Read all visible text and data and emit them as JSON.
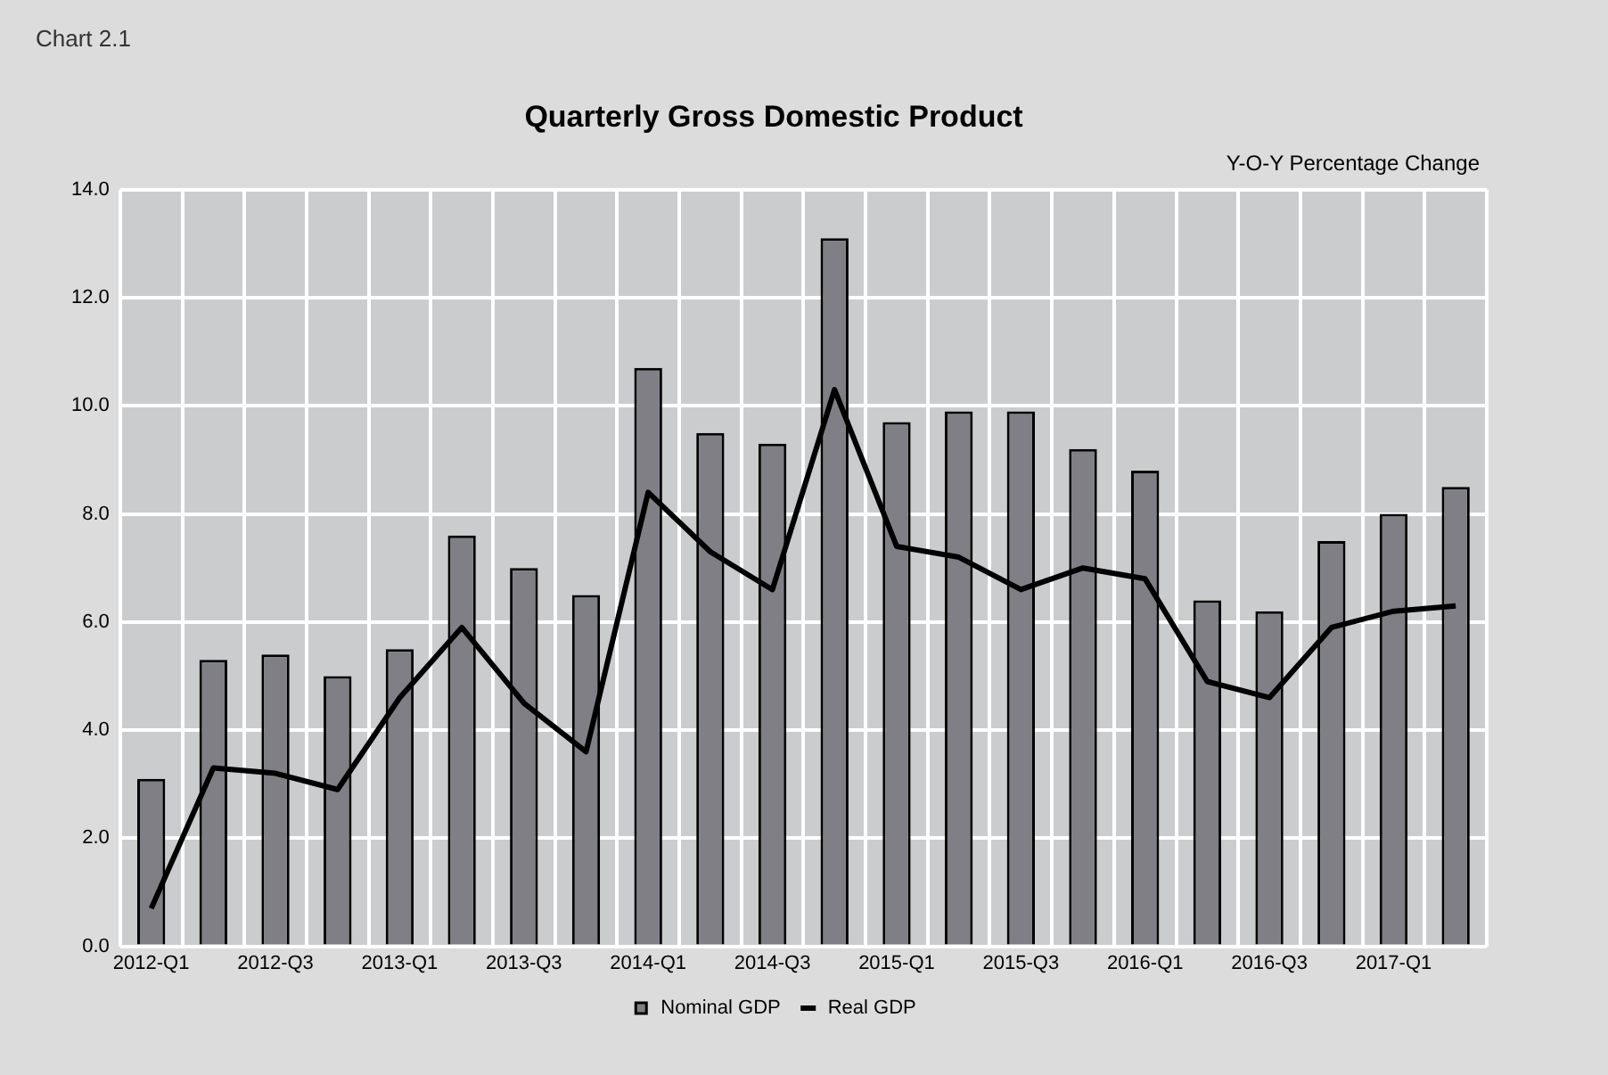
{
  "chart_data": {
    "type": "bar",
    "title": "Quarterly Gross Domestic Product",
    "ylabel": "Y-O-Y Percentage Change",
    "annotations": [
      "Chart 2.1"
    ],
    "categories": [
      "2012-Q1",
      null,
      "2012-Q3",
      null,
      "2013-Q1",
      null,
      "2013-Q3",
      null,
      "2014-Q1",
      null,
      "2014-Q3",
      null,
      "2015-Q1",
      null,
      "2015-Q3",
      null,
      "2016-Q1",
      null,
      "2016-Q3",
      null,
      "2017-Q1",
      null
    ],
    "series": [
      {
        "name": "Nominal GDP",
        "color": "#7f7f85",
        "values": [
          3.1,
          5.3,
          5.4,
          5.0,
          5.5,
          7.6,
          7.0,
          6.5,
          10.7,
          9.5,
          9.3,
          13.1,
          9.7,
          9.9,
          9.9,
          9.2,
          8.8,
          6.4,
          6.2,
          7.5,
          8.0,
          8.5
        ]
      },
      {
        "name": "Real GDP",
        "type": "line",
        "color": "#000000",
        "marker": "none",
        "line_style": "solid",
        "values": [
          0.7,
          3.3,
          3.2,
          2.9,
          4.6,
          5.9,
          4.5,
          3.6,
          8.4,
          7.3,
          6.6,
          10.3,
          7.4,
          7.2,
          6.6,
          7.0,
          6.8,
          4.9,
          4.6,
          5.9,
          6.2,
          6.3
        ]
      }
    ],
    "ylim": [
      0,
      14
    ],
    "yticks": [
      {
        "value": 0,
        "label": "0.0"
      },
      {
        "value": 2,
        "label": "2.0"
      },
      {
        "value": 4,
        "label": "4.0"
      },
      {
        "value": 6,
        "label": "6.0"
      },
      {
        "value": 8,
        "label": "8.0"
      },
      {
        "value": 10,
        "label": "10.0"
      },
      {
        "value": 12,
        "label": "12.0"
      },
      {
        "value": 14,
        "label": "14.0"
      }
    ],
    "grid": true,
    "legend": "bottom"
  }
}
